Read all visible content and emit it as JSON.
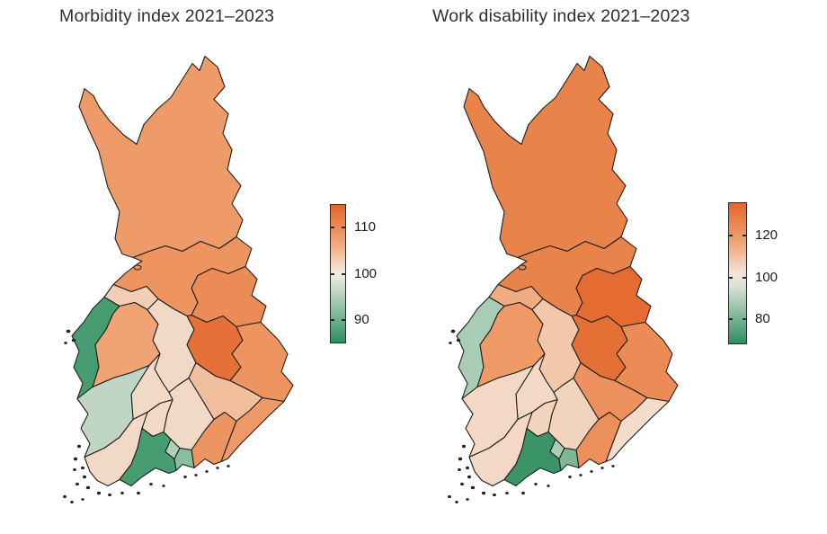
{
  "figure": {
    "background": "#ffffff"
  },
  "panels": [
    {
      "title": "Morbidity index 2021–2023"
    },
    {
      "title": "Work disability index 2021–2023"
    }
  ],
  "colors": {
    "scale_low": "#2e8e5e",
    "scale_low_mid": "#90c1a4",
    "scale_mid": "#f3eee6",
    "scale_high_mid": "#f09f6e",
    "scale_high": "#e2662a",
    "region_border": "#1f1f1f",
    "legend_border": "#2b2b2b",
    "title_text": "#2e2e2e",
    "tick_text": "#1a1a1a"
  },
  "chart_data": [
    {
      "type": "choropleth",
      "title": "Morbidity index 2021–2023",
      "geography": "Finland regions",
      "legend_position": "right",
      "scale_midpoint": 100,
      "scale_domain": [
        85,
        115
      ],
      "legend_ticks": [
        110,
        100,
        90
      ],
      "regions": [
        {
          "id": "lappi",
          "region": "Lappi",
          "value": 108
        },
        {
          "id": "pohjois-pohjanmaa",
          "region": "Pohjois-Pohjanmaa",
          "value": 109
        },
        {
          "id": "kainuu",
          "region": "Kainuu",
          "value": 110
        },
        {
          "id": "keski-pohjanmaa",
          "region": "Keski-Pohjanmaa",
          "value": 103
        },
        {
          "id": "pohjanmaa",
          "region": "Pohjanmaa",
          "value": 87
        },
        {
          "id": "etela-pohjanmaa",
          "region": "Etelä-Pohjanmaa",
          "value": 107
        },
        {
          "id": "keski-suomi",
          "region": "Keski-Suomi",
          "value": 102
        },
        {
          "id": "pohjois-savo",
          "region": "Pohjois-Savo",
          "value": 113.5
        },
        {
          "id": "pohjois-karjala",
          "region": "Pohjois-Karjala",
          "value": 109
        },
        {
          "id": "etela-savo",
          "region": "Etelä-Savo",
          "value": 104.5
        },
        {
          "id": "etela-karjala",
          "region": "Etelä-Karjala",
          "value": 108
        },
        {
          "id": "kymenlaakso",
          "region": "Kymenlaakso",
          "value": 109
        },
        {
          "id": "paijat-hame",
          "region": "Päijät-Häme",
          "value": 102
        },
        {
          "id": "kanta-hame",
          "region": "Kanta-Häme",
          "value": 102
        },
        {
          "id": "pirkanmaa",
          "region": "Pirkanmaa",
          "value": 102
        },
        {
          "id": "satakunta",
          "region": "Satakunta",
          "value": 96
        },
        {
          "id": "varsinais-suomi",
          "region": "Varsinais-Suomi",
          "value": 102
        },
        {
          "id": "uusimaa",
          "region": "Uusimaa",
          "value": 87
        },
        {
          "id": "keski-uusimaa",
          "region": "Keski-Uusimaa",
          "value": 95
        },
        {
          "id": "ita-uusimaa",
          "region": "Itä-Uusimaa",
          "value": 92
        }
      ]
    },
    {
      "type": "choropleth",
      "title": "Work disability index 2021–2023",
      "geography": "Finland regions",
      "legend_position": "right",
      "scale_midpoint": 100,
      "scale_domain": [
        68,
        136
      ],
      "legend_ticks": [
        120,
        100,
        80
      ],
      "regions": [
        {
          "id": "lappi",
          "region": "Lappi",
          "value": 127
        },
        {
          "id": "pohjois-pohjanmaa",
          "region": "Pohjois-Pohjanmaa",
          "value": 127
        },
        {
          "id": "kainuu",
          "region": "Kainuu",
          "value": 134
        },
        {
          "id": "keski-pohjanmaa",
          "region": "Keski-Pohjanmaa",
          "value": 115
        },
        {
          "id": "pohjanmaa",
          "region": "Pohjanmaa",
          "value": 88
        },
        {
          "id": "etela-pohjanmaa",
          "region": "Etelä-Pohjanmaa",
          "value": 120
        },
        {
          "id": "keski-suomi",
          "region": "Keski-Suomi",
          "value": 109
        },
        {
          "id": "pohjois-savo",
          "region": "Pohjois-Savo",
          "value": 133
        },
        {
          "id": "pohjois-karjala",
          "region": "Pohjois-Karjala",
          "value": 124
        },
        {
          "id": "etela-savo",
          "region": "Etelä-Savo",
          "value": 122
        },
        {
          "id": "etela-karjala",
          "region": "Etelä-Karjala",
          "value": 104
        },
        {
          "id": "kymenlaakso",
          "region": "Kymenlaakso",
          "value": 123
        },
        {
          "id": "paijat-hame",
          "region": "Päijät-Häme",
          "value": 106
        },
        {
          "id": "kanta-hame",
          "region": "Kanta-Häme",
          "value": 106
        },
        {
          "id": "pirkanmaa",
          "region": "Pirkanmaa",
          "value": 105
        },
        {
          "id": "satakunta",
          "region": "Satakunta",
          "value": 105
        },
        {
          "id": "varsinais-suomi",
          "region": "Varsinais-Suomi",
          "value": 105
        },
        {
          "id": "uusimaa",
          "region": "Uusimaa",
          "value": 70
        },
        {
          "id": "keski-uusimaa",
          "region": "Keski-Uusimaa",
          "value": 88
        },
        {
          "id": "ita-uusimaa",
          "region": "Itä-Uusimaa",
          "value": 81
        }
      ]
    }
  ]
}
